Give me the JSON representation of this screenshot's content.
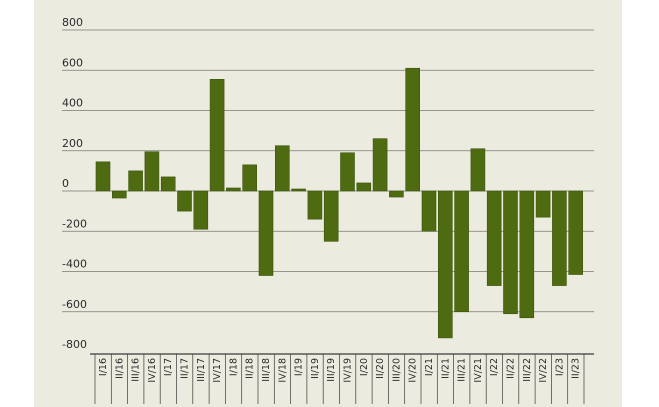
{
  "colors": {
    "bar": "#4e6b12",
    "bar_stroke": "#3c550c",
    "grid": "#7a7a72",
    "axis": "#3a3a3a",
    "panel_bg": "#ecebe0"
  },
  "chart_data": {
    "type": "bar",
    "title": "",
    "xlabel": "",
    "ylabel": "",
    "ylim": [
      -800,
      800
    ],
    "yticks": [
      800,
      600,
      400,
      200,
      0,
      -200,
      -400,
      -600,
      -800
    ],
    "ytick_labels": [
      "800",
      "600",
      "400",
      "200",
      "0",
      "-200",
      "-400",
      "-600",
      "-800"
    ],
    "grid": true,
    "categories": [
      "I/16",
      "II/16",
      "III/16",
      "IV/16",
      "I/17",
      "II/17",
      "III/17",
      "IV/17",
      "I/18",
      "II/18",
      "III/18",
      "IV/18",
      "I/19",
      "II/19",
      "III/19",
      "IV/19",
      "I/20",
      "II/20",
      "III/20",
      "IV/20",
      "I/21",
      "II/21",
      "III/21",
      "IV/21",
      "I/22",
      "II/22",
      "III/22",
      "IV/22",
      "I/23",
      "II/23"
    ],
    "values": [
      145,
      -35,
      100,
      195,
      70,
      -100,
      -190,
      555,
      15,
      130,
      -420,
      225,
      10,
      -140,
      -250,
      190,
      40,
      260,
      -30,
      610,
      -200,
      -730,
      -600,
      210,
      -470,
      -610,
      -630,
      -130,
      -470,
      -415
    ]
  }
}
